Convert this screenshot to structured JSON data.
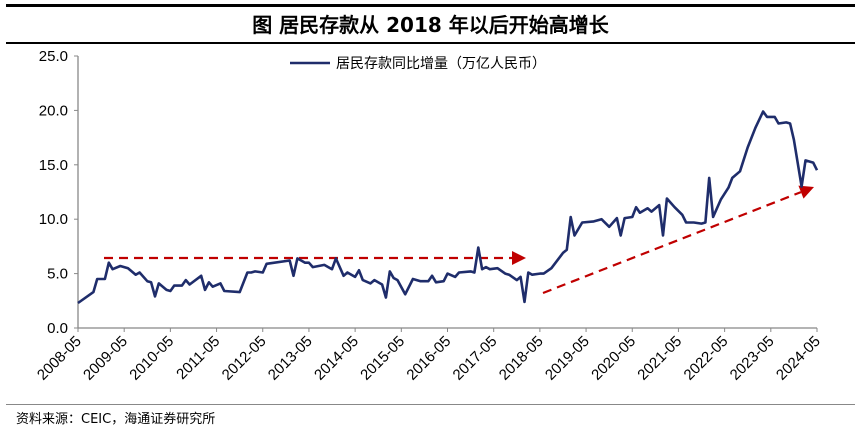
{
  "title": "图  居民存款从 2018 年以后开始高增长",
  "source": "资料来源：CEIC，海通证券研究所",
  "chart_data": {
    "type": "line",
    "title": "图  居民存款从 2018 年以后开始高增长",
    "xlabel": "",
    "ylabel": "",
    "ylim": [
      0,
      25
    ],
    "xlim": [
      "2008-05",
      "2024-05"
    ],
    "yticks": [
      "0.0",
      "5.0",
      "10.0",
      "15.0",
      "20.0",
      "25.0"
    ],
    "xticks": [
      "2008-05",
      "2009-05",
      "2010-05",
      "2011-05",
      "2012-05",
      "2013-05",
      "2014-05",
      "2015-05",
      "2016-05",
      "2017-05",
      "2018-05",
      "2019-05",
      "2020-05",
      "2021-05",
      "2022-05",
      "2023-05",
      "2024-05"
    ],
    "grid": false,
    "legend_position": "top-center",
    "colors": {
      "series": "#1f2d6b",
      "arrow": "#c00000"
    },
    "series": [
      {
        "name": "居民存款同比增量（万亿人民币）",
        "points": [
          [
            "2008-05",
            2.3
          ],
          [
            "2008-09",
            3.3
          ],
          [
            "2008-10",
            4.5
          ],
          [
            "2008-12",
            4.5
          ],
          [
            "2009-01",
            6.0
          ],
          [
            "2009-02",
            5.4
          ],
          [
            "2009-04",
            5.7
          ],
          [
            "2009-06",
            5.5
          ],
          [
            "2009-08",
            4.9
          ],
          [
            "2009-09",
            5.1
          ],
          [
            "2009-11",
            4.3
          ],
          [
            "2009-12",
            4.2
          ],
          [
            "2010-01",
            2.9
          ],
          [
            "2010-02",
            4.1
          ],
          [
            "2010-04",
            3.5
          ],
          [
            "2010-05",
            3.4
          ],
          [
            "2010-06",
            3.9
          ],
          [
            "2010-08",
            3.9
          ],
          [
            "2010-09",
            4.4
          ],
          [
            "2010-10",
            4.0
          ],
          [
            "2011-01",
            4.8
          ],
          [
            "2011-02",
            3.5
          ],
          [
            "2011-03",
            4.2
          ],
          [
            "2011-04",
            3.8
          ],
          [
            "2011-06",
            4.1
          ],
          [
            "2011-07",
            3.4
          ],
          [
            "2011-11",
            3.3
          ],
          [
            "2012-01",
            5.1
          ],
          [
            "2012-02",
            5.1
          ],
          [
            "2012-03",
            5.2
          ],
          [
            "2012-05",
            5.1
          ],
          [
            "2012-06",
            5.9
          ],
          [
            "2012-12",
            6.2
          ],
          [
            "2013-01",
            4.8
          ],
          [
            "2013-02",
            6.4
          ],
          [
            "2013-04",
            6.0
          ],
          [
            "2013-05",
            6.0
          ],
          [
            "2013-06",
            5.6
          ],
          [
            "2013-09",
            5.8
          ],
          [
            "2013-11",
            5.4
          ],
          [
            "2013-12",
            6.4
          ],
          [
            "2014-02",
            4.8
          ],
          [
            "2014-03",
            5.1
          ],
          [
            "2014-05",
            4.7
          ],
          [
            "2014-06",
            5.3
          ],
          [
            "2014-07",
            4.4
          ],
          [
            "2014-09",
            4.1
          ],
          [
            "2014-10",
            4.4
          ],
          [
            "2014-12",
            4.0
          ],
          [
            "2015-01",
            2.8
          ],
          [
            "2015-02",
            5.2
          ],
          [
            "2015-03",
            4.6
          ],
          [
            "2015-04",
            4.4
          ],
          [
            "2015-06",
            3.1
          ],
          [
            "2015-08",
            4.5
          ],
          [
            "2015-10",
            4.3
          ],
          [
            "2015-12",
            4.3
          ],
          [
            "2016-01",
            4.8
          ],
          [
            "2016-02",
            4.2
          ],
          [
            "2016-04",
            4.3
          ],
          [
            "2016-05",
            5.0
          ],
          [
            "2016-07",
            4.7
          ],
          [
            "2016-08",
            5.1
          ],
          [
            "2016-11",
            5.2
          ],
          [
            "2016-12",
            5.1
          ],
          [
            "2017-01",
            7.4
          ],
          [
            "2017-02",
            5.4
          ],
          [
            "2017-03",
            5.6
          ],
          [
            "2017-04",
            5.4
          ],
          [
            "2017-06",
            5.5
          ],
          [
            "2017-08",
            5.0
          ],
          [
            "2017-09",
            4.9
          ],
          [
            "2017-11",
            4.4
          ],
          [
            "2017-12",
            4.7
          ],
          [
            "2018-01",
            2.4
          ],
          [
            "2018-02",
            5.1
          ],
          [
            "2018-03",
            4.9
          ],
          [
            "2018-05",
            5.0
          ],
          [
            "2018-06",
            5.0
          ],
          [
            "2018-08",
            5.5
          ],
          [
            "2018-11",
            6.9
          ],
          [
            "2018-12",
            7.2
          ],
          [
            "2019-01",
            10.2
          ],
          [
            "2019-02",
            8.5
          ],
          [
            "2019-04",
            9.7
          ],
          [
            "2019-07",
            9.8
          ],
          [
            "2019-09",
            10.0
          ],
          [
            "2019-11",
            9.3
          ],
          [
            "2020-01",
            10.1
          ],
          [
            "2020-02",
            8.5
          ],
          [
            "2020-03",
            10.1
          ],
          [
            "2020-05",
            10.2
          ],
          [
            "2020-06",
            11.1
          ],
          [
            "2020-07",
            10.6
          ],
          [
            "2020-09",
            11.0
          ],
          [
            "2020-10",
            10.7
          ],
          [
            "2020-12",
            11.3
          ],
          [
            "2021-01",
            8.5
          ],
          [
            "2021-02",
            11.9
          ],
          [
            "2021-04",
            11.1
          ],
          [
            "2021-06",
            10.4
          ],
          [
            "2021-07",
            9.7
          ],
          [
            "2021-09",
            9.7
          ],
          [
            "2021-11",
            9.6
          ],
          [
            "2021-12",
            9.7
          ],
          [
            "2022-01",
            13.8
          ],
          [
            "2022-02",
            10.2
          ],
          [
            "2022-04",
            11.8
          ],
          [
            "2022-06",
            12.9
          ],
          [
            "2022-07",
            13.8
          ],
          [
            "2022-09",
            14.4
          ],
          [
            "2022-11",
            16.6
          ],
          [
            "2023-01",
            18.4
          ],
          [
            "2023-03",
            19.9
          ],
          [
            "2023-04",
            19.4
          ],
          [
            "2023-06",
            19.4
          ],
          [
            "2023-07",
            18.8
          ],
          [
            "2023-09",
            18.9
          ],
          [
            "2023-10",
            18.8
          ],
          [
            "2023-11",
            17.3
          ],
          [
            "2024-01",
            13.0
          ],
          [
            "2024-02",
            15.4
          ],
          [
            "2024-04",
            15.2
          ],
          [
            "2024-05",
            14.5
          ]
        ]
      }
    ]
  }
}
